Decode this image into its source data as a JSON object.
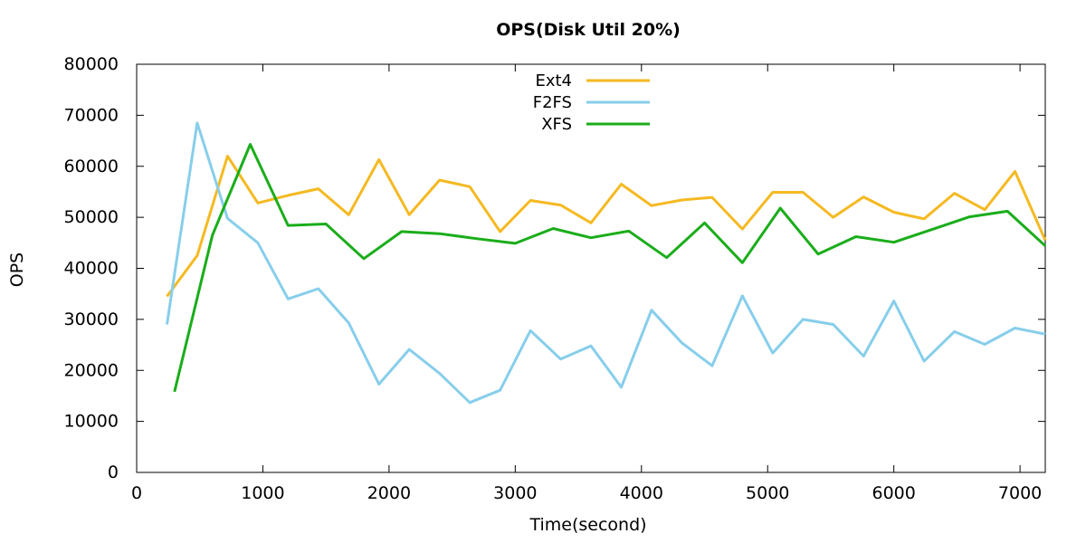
{
  "chart_data": {
    "type": "line",
    "title": "OPS(Disk Util 20%)",
    "xlabel": "Time(second)",
    "ylabel": "OPS",
    "xlim": [
      0,
      7200
    ],
    "ylim": [
      0,
      80000
    ],
    "xticks": [
      0,
      1000,
      2000,
      3000,
      4000,
      5000,
      6000,
      7000
    ],
    "yticks": [
      0,
      10000,
      20000,
      30000,
      40000,
      50000,
      60000,
      70000,
      80000
    ],
    "grid": false,
    "legend_position": "top-center",
    "series": [
      {
        "name": "Ext4",
        "color": "#f5b921",
        "x": [
          240,
          480,
          720,
          960,
          1200,
          1440,
          1680,
          1920,
          2160,
          2400,
          2640,
          2880,
          3120,
          3360,
          3600,
          3840,
          4080,
          4320,
          4560,
          4800,
          5040,
          5280,
          5520,
          5760,
          6000,
          6240,
          6480,
          6720,
          6960,
          7200
        ],
        "y": [
          34500,
          42500,
          62000,
          52800,
          54300,
          55600,
          50500,
          61300,
          50500,
          57300,
          56000,
          47200,
          53300,
          52400,
          48900,
          56500,
          52300,
          53400,
          53900,
          47700,
          54900,
          54900,
          50000,
          54000,
          51000,
          49700,
          54700,
          51500,
          59000,
          45500
        ]
      },
      {
        "name": "F2FS",
        "color": "#87ceeb",
        "x": [
          240,
          480,
          720,
          960,
          1200,
          1440,
          1680,
          1920,
          2160,
          2400,
          2640,
          2880,
          3120,
          3360,
          3600,
          3840,
          4080,
          4320,
          4560,
          4800,
          5040,
          5280,
          5520,
          5760,
          6000,
          6240,
          6480,
          6720,
          6960,
          7200
        ],
        "y": [
          29000,
          68500,
          49800,
          45000,
          34000,
          36000,
          29300,
          17300,
          24100,
          19400,
          13700,
          16100,
          27800,
          22200,
          24800,
          16700,
          31800,
          25400,
          20900,
          34600,
          23400,
          30000,
          29000,
          22800,
          33600,
          21800,
          27600,
          25100,
          28300,
          27100
        ]
      },
      {
        "name": "XFS",
        "color": "#1aad1a",
        "x": [
          300,
          600,
          900,
          1200,
          1500,
          1800,
          2100,
          2400,
          2700,
          3000,
          3300,
          3600,
          3900,
          4200,
          4500,
          4800,
          5100,
          5400,
          5700,
          6000,
          6300,
          6600,
          6900,
          7200
        ],
        "y": [
          15800,
          46500,
          64300,
          48400,
          48700,
          41900,
          47200,
          46800,
          45800,
          44900,
          47800,
          46000,
          47300,
          42100,
          48900,
          41100,
          51800,
          42800,
          46200,
          45100,
          47600,
          50100,
          51200,
          44400
        ]
      }
    ]
  }
}
